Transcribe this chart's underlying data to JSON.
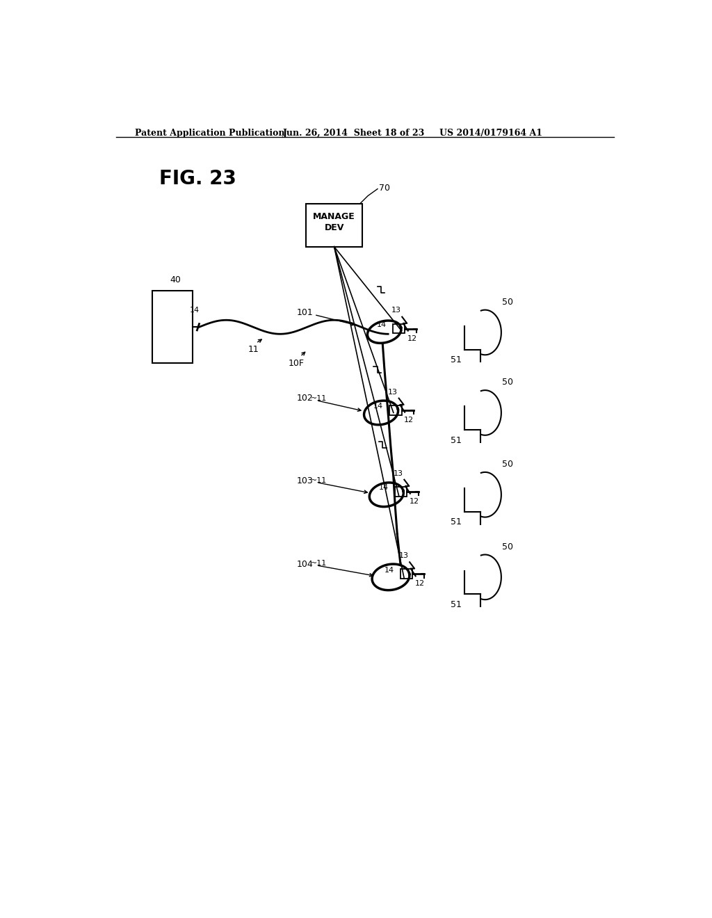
{
  "bg_color": "#ffffff",
  "header_text": "Patent Application Publication",
  "header_date": "Jun. 26, 2014  Sheet 18 of 23",
  "header_patent": "US 2014/0179164 A1",
  "fig_label": "FIG. 23"
}
